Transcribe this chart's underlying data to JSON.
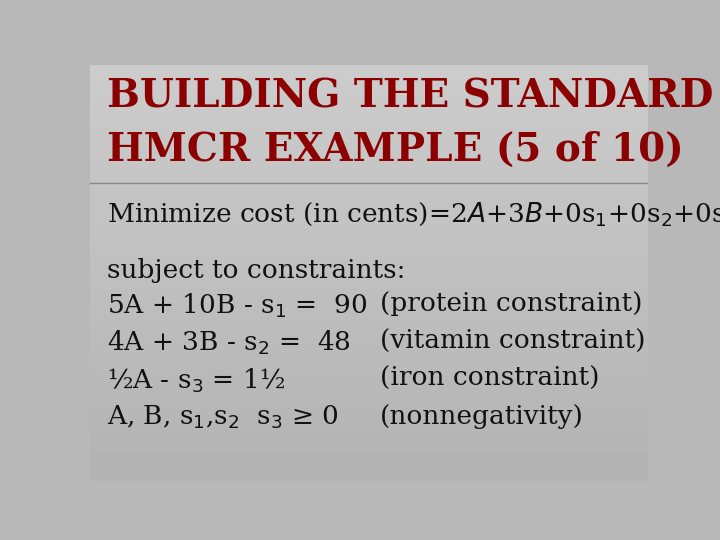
{
  "title_line1": "BUILDING THE STANDARD LP MODEL:",
  "title_line2": "HMCR EXAMPLE (5 of 10)",
  "title_color": "#8B0000",
  "title_fontsize": 28,
  "body_color": "#111111",
  "body_fontsize": 19,
  "subject_text": "subject to constraints:",
  "constraint1_left": "5A + 10B - s$_1$ =  90",
  "constraint1_label": "(protein constraint)",
  "constraint2_left": "4A + 3B - s$_2$ =  48",
  "constraint2_label": "(vitamin constraint)",
  "constraint3_left": "½A - s$_3$ = 1½",
  "constraint3_label": "(iron constraint)",
  "constraint4_left": "A, B, s$_1$,s$_2$  s$_3$ ≥ 0",
  "constraint4_label": "(nonnegativity)"
}
